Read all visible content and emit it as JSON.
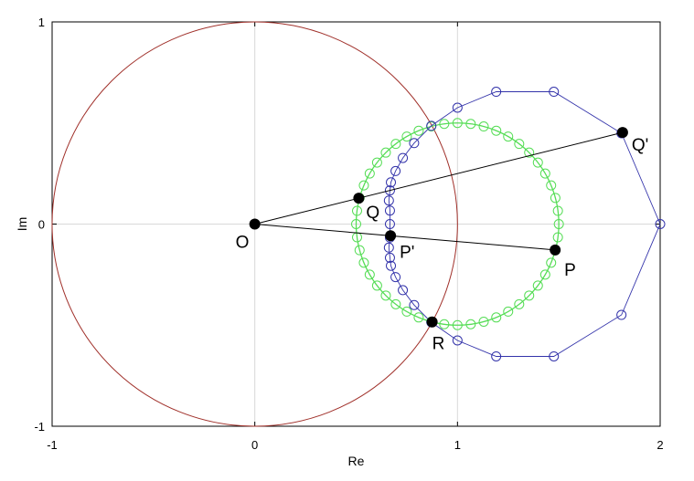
{
  "chart_data": {
    "type": "scatter",
    "title": "",
    "xlabel": "Re",
    "ylabel": "Im",
    "xlim": [
      -1,
      2
    ],
    "ylim": [
      -1,
      1
    ],
    "x_ticks": [
      "-1",
      "0",
      "1",
      "2"
    ],
    "y_ticks": [
      "-1",
      "0",
      "1"
    ],
    "grid": true,
    "legend": "none",
    "colors": {
      "unit_circle": "#a0302a",
      "green_circle": "#55dd55",
      "blue_curve": "#3333aa",
      "segments": "#000000",
      "points": "#000000"
    },
    "curves": {
      "unit_circle": {
        "center": [
          0,
          0
        ],
        "radius": 1
      },
      "green_circle": {
        "center": [
          1,
          0
        ],
        "radius": 0.5,
        "markers": [
          [
            1.5,
            0
          ],
          [
            1.4955,
            0.0654
          ],
          [
            1.483,
            0.1294
          ],
          [
            1.4619,
            0.1913
          ],
          [
            1.433,
            0.25
          ],
          [
            1.3967,
            0.3044
          ],
          [
            1.3536,
            0.3536
          ],
          [
            1.3044,
            0.3967
          ],
          [
            1.25,
            0.433
          ],
          [
            1.1913,
            0.4619
          ],
          [
            1.1294,
            0.483
          ],
          [
            1.0654,
            0.4955
          ],
          [
            1.0,
            0.5
          ],
          [
            0.9346,
            0.4955
          ],
          [
            0.8706,
            0.483
          ],
          [
            0.8087,
            0.4619
          ],
          [
            0.75,
            0.433
          ],
          [
            0.6956,
            0.3967
          ],
          [
            0.6464,
            0.3536
          ],
          [
            0.6033,
            0.3044
          ],
          [
            0.567,
            0.25
          ],
          [
            0.5381,
            0.1913
          ],
          [
            0.517,
            0.1294
          ],
          [
            0.5045,
            0.0654
          ],
          [
            0.5,
            0
          ],
          [
            0.5045,
            -0.0654
          ],
          [
            0.517,
            -0.1294
          ],
          [
            0.5381,
            -0.1913
          ],
          [
            0.567,
            -0.25
          ],
          [
            0.6033,
            -0.3044
          ],
          [
            0.6464,
            -0.3536
          ],
          [
            0.6956,
            -0.3967
          ],
          [
            0.75,
            -0.433
          ],
          [
            0.8087,
            -0.4619
          ],
          [
            0.8706,
            -0.483
          ],
          [
            0.9346,
            -0.4955
          ],
          [
            1.0,
            -0.5
          ],
          [
            1.0654,
            -0.4955
          ],
          [
            1.1294,
            -0.483
          ],
          [
            1.1913,
            -0.4619
          ],
          [
            1.25,
            -0.433
          ],
          [
            1.3044,
            -0.3967
          ],
          [
            1.3536,
            -0.3536
          ],
          [
            1.3967,
            -0.3044
          ],
          [
            1.433,
            -0.25
          ],
          [
            1.4619,
            -0.1913
          ],
          [
            1.483,
            -0.1294
          ],
          [
            1.4955,
            -0.0654
          ]
        ]
      },
      "blue_curve": {
        "points": [
          [
            2.0,
            0
          ],
          [
            1.809,
            0.4493
          ],
          [
            1.4755,
            0.6545
          ],
          [
            1.191,
            0.6545
          ],
          [
            1.0,
            0.5756
          ],
          [
            0.871,
            0.4857
          ],
          [
            0.7861,
            0.4005
          ],
          [
            0.7304,
            0.3268
          ],
          [
            0.6944,
            0.2622
          ],
          [
            0.6715,
            0.2063
          ],
          [
            0.6667,
            0.1667
          ],
          [
            0.6616,
            0.1163
          ],
          [
            0.6667,
            0.0667
          ],
          [
            0.6667,
            0
          ],
          [
            0.6667,
            -0.0667
          ],
          [
            0.6616,
            -0.1163
          ],
          [
            0.6667,
            -0.1667
          ],
          [
            0.6715,
            -0.2063
          ],
          [
            0.6944,
            -0.2622
          ],
          [
            0.7304,
            -0.3268
          ],
          [
            0.7861,
            -0.4005
          ],
          [
            0.871,
            -0.4857
          ],
          [
            1.0,
            -0.5756
          ],
          [
            1.191,
            -0.6545
          ],
          [
            1.4755,
            -0.6545
          ],
          [
            1.809,
            -0.4493
          ],
          [
            2.0,
            0
          ]
        ]
      }
    },
    "segments": [
      {
        "from": [
          0,
          0
        ],
        "to": [
          1.8146,
          0.453
        ]
      },
      {
        "from": [
          0,
          0
        ],
        "to": [
          1.482,
          -0.128
        ]
      }
    ],
    "labeled_points": [
      {
        "name": "O",
        "x": 0,
        "y": 0
      },
      {
        "name": "Q",
        "x": 0.5131,
        "y": 0.1281
      },
      {
        "name": "Q'",
        "x": 1.8146,
        "y": 0.453
      },
      {
        "name": "P",
        "x": 1.482,
        "y": -0.128
      },
      {
        "name": "P'",
        "x": 0.6697,
        "y": -0.0578
      },
      {
        "name": "R",
        "x": 0.875,
        "y": -0.4841
      }
    ]
  }
}
